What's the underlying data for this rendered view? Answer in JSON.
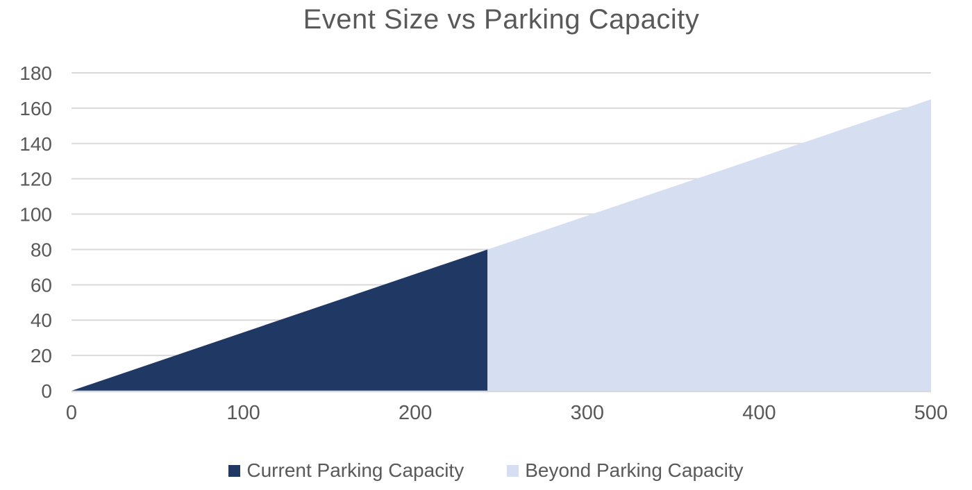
{
  "chart_data": {
    "type": "area",
    "title": "Event Size vs Parking Capacity",
    "xlabel": "",
    "ylabel": "",
    "xlim": [
      0,
      500
    ],
    "ylim": [
      0,
      180
    ],
    "x_ticks": [
      0,
      100,
      200,
      300,
      400,
      500
    ],
    "y_ticks": [
      0,
      20,
      40,
      60,
      80,
      100,
      120,
      140,
      160,
      180
    ],
    "grid": "horizontal-only",
    "legend_position": "bottom",
    "colors": {
      "title_text": "#595959",
      "axis_text": "#595959",
      "gridline": "#D9D9D9",
      "background": "#FFFFFF"
    },
    "series": [
      {
        "name": "Current Parking Capacity",
        "color": "#1F3864",
        "points": [
          {
            "x": 0,
            "y": 0
          },
          {
            "x": 242,
            "y": 80
          }
        ]
      },
      {
        "name": "Beyond Parking Capacity",
        "color": "#D5DFF1",
        "points": [
          {
            "x": 242,
            "y": 80
          },
          {
            "x": 500,
            "y": 165
          }
        ]
      }
    ]
  }
}
